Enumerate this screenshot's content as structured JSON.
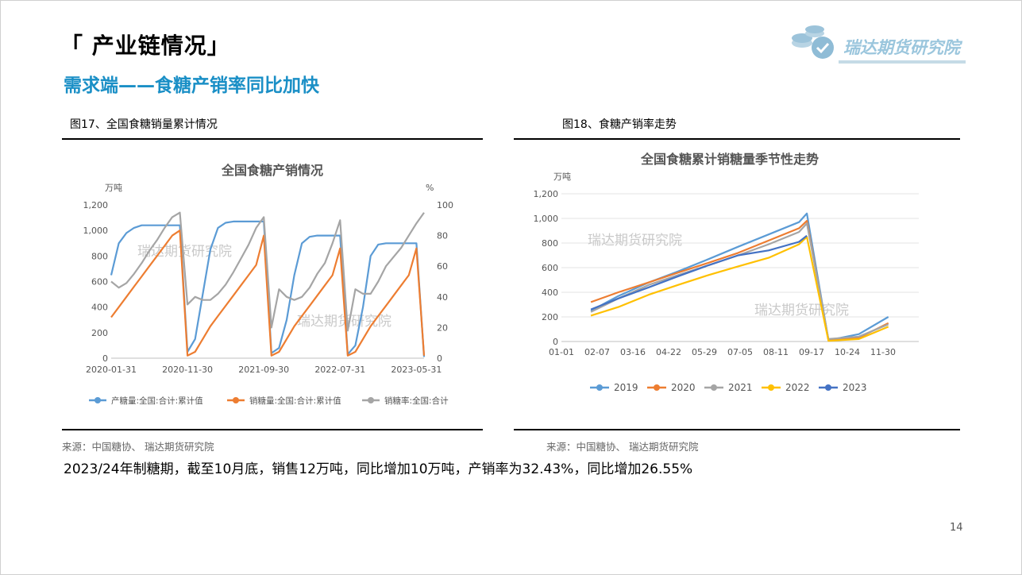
{
  "header": {
    "title": "「 产业链情况」",
    "subtitle": "需求端——食糖产销率同比加快",
    "logo_text": "瑞达期货研究院"
  },
  "fig17": {
    "caption": "图17、全国食糖销量累计情况",
    "source": "来源：中国糖协、 瑞达期货研究院",
    "watermark": "瑞达期货研究院",
    "chart_data": {
      "type": "line",
      "title": "全国食糖产销情况",
      "ylabel": "万吨",
      "y2label": "%",
      "ylim": [
        0,
        1200
      ],
      "y2lim": [
        0,
        100
      ],
      "yticks": [
        "0",
        "200",
        "400",
        "600",
        "800",
        "1,000",
        "1,200"
      ],
      "y2ticks": [
        "0",
        "20",
        "40",
        "60",
        "80",
        "100"
      ],
      "x_tick_labels": [
        "2020-01-31",
        "2020-11-30",
        "2021-09-30",
        "2022-07-31",
        "2023-05-31"
      ],
      "x_tick_index": [
        0,
        10,
        20,
        30,
        40
      ],
      "series": [
        {
          "name": "产糖量:全国:合计:累计值",
          "color": "#5b9bd5",
          "axis": "left",
          "values": [
            650,
            900,
            980,
            1020,
            1040,
            1040,
            1040,
            1040,
            1040,
            1040,
            50,
            150,
            500,
            850,
            1020,
            1060,
            1070,
            1070,
            1070,
            1070,
            1070,
            40,
            80,
            300,
            650,
            900,
            950,
            960,
            960,
            960,
            960,
            30,
            100,
            400,
            800,
            890,
            900,
            900,
            900,
            900,
            900,
            10
          ]
        },
        {
          "name": "销糖量:全国:合计:累计值",
          "color": "#ed7d31",
          "axis": "left",
          "values": [
            320,
            400,
            480,
            560,
            640,
            720,
            800,
            880,
            960,
            1000,
            20,
            50,
            150,
            250,
            330,
            410,
            490,
            570,
            650,
            730,
            960,
            20,
            50,
            150,
            250,
            330,
            410,
            490,
            570,
            650,
            860,
            20,
            50,
            150,
            250,
            330,
            410,
            490,
            570,
            650,
            860,
            20
          ]
        },
        {
          "name": "销糖率:全国:合计",
          "color": "#a5a5a5",
          "axis": "right",
          "values": [
            50,
            46,
            49,
            55,
            62,
            70,
            77,
            85,
            92,
            95,
            35,
            40,
            38,
            38,
            42,
            48,
            56,
            65,
            74,
            85,
            92,
            20,
            45,
            40,
            38,
            40,
            46,
            55,
            62,
            75,
            90,
            18,
            45,
            42,
            42,
            50,
            60,
            66,
            72,
            80,
            88,
            95
          ]
        }
      ]
    }
  },
  "fig18": {
    "caption": "图18、食糖产销率走势",
    "source": "来源：中国糖协、 瑞达期货研究院",
    "watermark": "瑞达期货研究院",
    "chart_data": {
      "type": "line",
      "title": "全国食糖累计销糖量季节性走势",
      "ylabel": "万吨",
      "ylim": [
        0,
        1200
      ],
      "yticks": [
        "0",
        "200",
        "400",
        "600",
        "800",
        "1,000",
        "1,200"
      ],
      "x_tick_labels": [
        "01-01",
        "02-07",
        "03-16",
        "04-22",
        "05-29",
        "07-05",
        "08-11",
        "09-17",
        "10-24",
        "11-30"
      ],
      "x_domain_days": [
        1,
        365
      ],
      "series": [
        {
          "name": "2019",
          "color": "#5b9bd5",
          "x_days": [
            31,
            59,
            90,
            120,
            151,
            181,
            212,
            243,
            251,
            273,
            304,
            334
          ],
          "values": [
            250,
            370,
            480,
            570,
            670,
            770,
            870,
            970,
            1040,
            10,
            60,
            200
          ]
        },
        {
          "name": "2020",
          "color": "#ed7d31",
          "x_days": [
            31,
            59,
            90,
            120,
            151,
            181,
            212,
            243,
            251,
            273,
            304,
            334
          ],
          "values": [
            320,
            400,
            480,
            560,
            640,
            720,
            820,
            920,
            980,
            10,
            30,
            150
          ]
        },
        {
          "name": "2021",
          "color": "#a5a5a5",
          "x_days": [
            31,
            59,
            90,
            120,
            151,
            181,
            212,
            243,
            251,
            273,
            304,
            334
          ],
          "values": [
            240,
            350,
            460,
            540,
            620,
            700,
            790,
            890,
            960,
            20,
            40,
            140
          ]
        },
        {
          "name": "2022",
          "color": "#ffc000",
          "x_days": [
            31,
            59,
            90,
            120,
            151,
            181,
            212,
            243,
            251,
            273,
            304,
            334
          ],
          "values": [
            210,
            280,
            380,
            460,
            540,
            610,
            680,
            790,
            850,
            5,
            20,
            120
          ]
        },
        {
          "name": "2023",
          "color": "#4472c4",
          "x_days": [
            31,
            59,
            90,
            120,
            151,
            181,
            212,
            243,
            251
          ],
          "values": [
            260,
            350,
            440,
            530,
            620,
            700,
            740,
            810,
            860
          ]
        }
      ]
    }
  },
  "summary": "2023/24年制糖期，截至10月底，销售12万吨，同比增加10万吨，产销率为32.43%，同比增加26.55%",
  "page_number": "14"
}
